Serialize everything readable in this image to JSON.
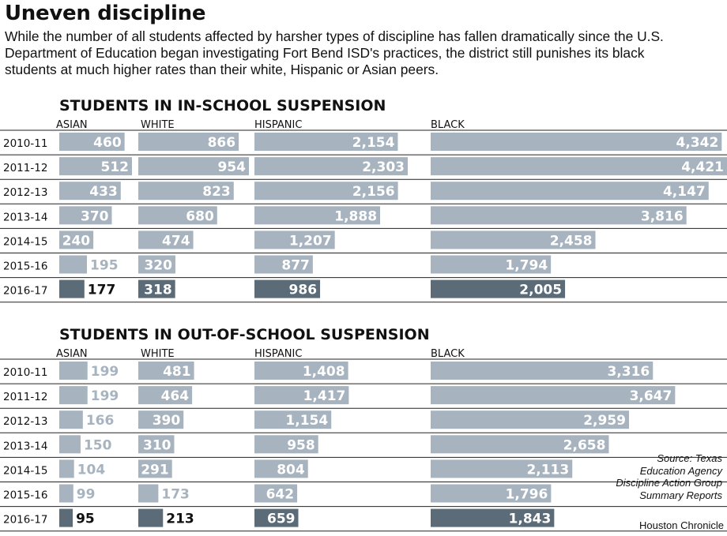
{
  "headline": "Uneven discipline",
  "dek": "While the number of all students affected by harsher types of discipline has fallen dramatically since the U.S. Department of Education began investigating Fort Bend ISD's practices, the district still punishes its black students at much higher rates than their white, Hispanic or Asian peers.",
  "source": "Source: Texas Education Agency Discipline Action Group Summary Reports",
  "credit": "Houston Chronicle",
  "colors": {
    "bar": "#a7b4bf",
    "bar_highlight": "#5b6b78",
    "label_on_light": "#ffffff",
    "label_on_dark": "#ffffff",
    "label_outside": "#a7b4bf",
    "label_outside_highlight": "#111111",
    "rule": "#222222"
  },
  "chart_data": [
    {
      "type": "bar",
      "title": "STUDENTS IN IN-SCHOOL SUSPENSION",
      "categories": [
        "2010-11",
        "2011-12",
        "2012-13",
        "2013-14",
        "2014-15",
        "2015-16",
        "2016-17"
      ],
      "highlight_category": "2016-17",
      "series": [
        {
          "name": "ASIAN",
          "values": [
            460,
            512,
            433,
            370,
            240,
            195,
            177
          ],
          "labels": [
            "460",
            "512",
            "433",
            "370",
            "240",
            "195",
            "177"
          ]
        },
        {
          "name": "WHITE",
          "values": [
            866,
            954,
            823,
            680,
            474,
            320,
            318
          ],
          "labels": [
            "866",
            "954",
            "823",
            "680",
            "474",
            "320",
            "318"
          ]
        },
        {
          "name": "HISPANIC",
          "values": [
            2154,
            2303,
            2156,
            1888,
            1207,
            877,
            986
          ],
          "labels": [
            "2,154",
            "2,303",
            "2,156",
            "1,888",
            "1,207",
            "877",
            "986"
          ]
        },
        {
          "name": "BLACK",
          "values": [
            4342,
            4421,
            4147,
            3816,
            2458,
            1794,
            2005
          ],
          "labels": [
            "4,342",
            "4,421",
            "4,147",
            "3,816",
            "2,458",
            "1,794",
            "2,005"
          ]
        }
      ]
    },
    {
      "type": "bar",
      "title": "STUDENTS IN OUT-OF-SCHOOL SUSPENSION",
      "categories": [
        "2010-11",
        "2011-12",
        "2012-13",
        "2013-14",
        "2014-15",
        "2015-16",
        "2016-17"
      ],
      "highlight_category": "2016-17",
      "series": [
        {
          "name": "ASIAN",
          "values": [
            199,
            199,
            166,
            150,
            104,
            99,
            95
          ],
          "labels": [
            "199",
            "199",
            "166",
            "150",
            "104",
            "99",
            "95"
          ]
        },
        {
          "name": "WHITE",
          "values": [
            481,
            464,
            390,
            310,
            291,
            173,
            213
          ],
          "labels": [
            "481",
            "464",
            "390",
            "310",
            "291",
            "173",
            "213"
          ]
        },
        {
          "name": "HISPANIC",
          "values": [
            1408,
            1417,
            1154,
            958,
            804,
            642,
            659
          ],
          "labels": [
            "1,408",
            "1,417",
            "1,154",
            "958",
            "804",
            "642",
            "659"
          ]
        },
        {
          "name": "BLACK",
          "values": [
            3316,
            3647,
            2959,
            2658,
            2113,
            1796,
            1843
          ],
          "labels": [
            "3,316",
            "3,647",
            "2,959",
            "2,658",
            "2,113",
            "1,796",
            "1,843"
          ]
        }
      ]
    }
  ]
}
